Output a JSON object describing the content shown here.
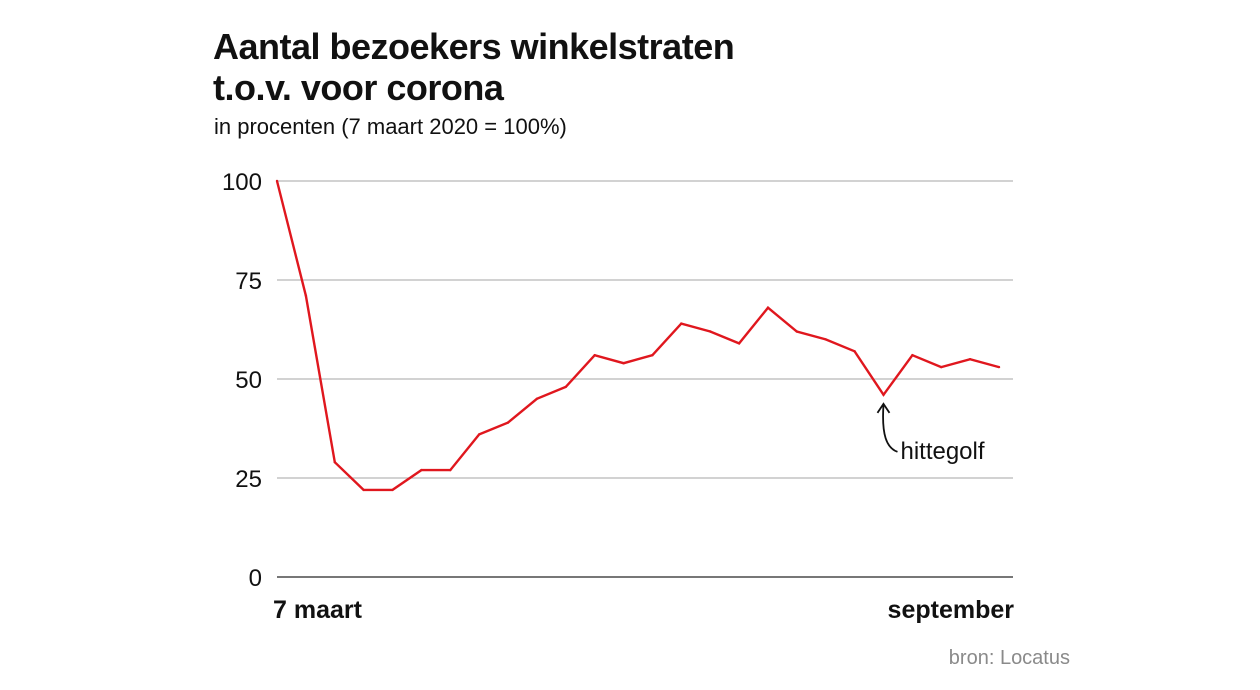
{
  "title_line1": "Aantal bezoekers winkelstraten",
  "title_line2": "t.o.v. voor corona",
  "subtitle": "in procenten (7 maart 2020 = 100%)",
  "source": "bron: Locatus",
  "colors": {
    "line": "#e0171e",
    "grid": "#b8b8b8",
    "axis": "#777777",
    "text": "#111111",
    "source": "#8a8a8a"
  },
  "chart_data": {
    "type": "line",
    "title": "Aantal bezoekers winkelstraten t.o.v. voor corona",
    "subtitle": "in procenten (7 maart 2020 = 100%)",
    "xlabel": "",
    "ylabel": "",
    "ylim": [
      0,
      100
    ],
    "yticks": [
      0,
      25,
      50,
      75,
      100
    ],
    "ytick_labels": [
      "0",
      "25",
      "50",
      "75",
      "100"
    ],
    "x_start_label": "7 maart",
    "x_end_label": "september",
    "grid": true,
    "series": [
      {
        "name": "bezoekers",
        "x": [
          0,
          1,
          2,
          3,
          4,
          5,
          6,
          7,
          8,
          9,
          10,
          11,
          12,
          13,
          14,
          15,
          16,
          17,
          18,
          19,
          20,
          21,
          22,
          23,
          24,
          25
        ],
        "values": [
          100,
          71,
          29,
          22,
          22,
          27,
          27,
          36,
          39,
          45,
          48,
          56,
          54,
          56,
          64,
          62,
          59,
          68,
          62,
          60,
          57,
          46,
          56,
          53,
          55,
          53
        ]
      }
    ],
    "annotations": [
      {
        "text": "hittegolf",
        "x": 21,
        "y": 46
      }
    ]
  }
}
